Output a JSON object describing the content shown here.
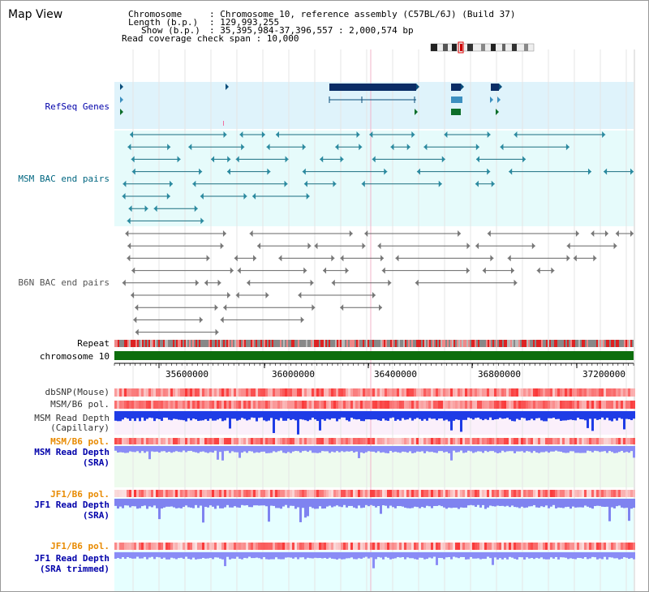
{
  "title": "Map View",
  "header": {
    "chromosome_key": "Chromosome",
    "chromosome_val": ": Chromosome 10, reference assembly (C57BL/6J) (Build 37)",
    "length_key": "Length (b.p.)",
    "length_val": ": 129,993,255",
    "show_key": "Show (b.p.)",
    "show_val": ": 35,395,984-37,396,557 : 2,000,574 bp",
    "coverage": "Read coverage check span : 10,000"
  },
  "tracks": {
    "refseq": "RefSeq Genes",
    "msm_bac": "MSM BAC end pairs",
    "b6n_bac": "B6N BAC end pairs",
    "repeat": "Repeat",
    "chromosome": "chromosome 10",
    "dbsnp": "dbSNP(Mouse)",
    "msm_b6_pol": "MSM/B6 pol.",
    "msm_depth_cap_1": "MSM Read Depth",
    "msm_depth_cap_2": "(Capillary)",
    "msm_b6_pol_sra": "MSM/B6 pol.",
    "msm_depth_sra_1": "MSM Read Depth",
    "msm_depth_sra_2": "(SRA)",
    "jf1_b6_pol": "JF1/B6 pol.",
    "jf1_depth_sra_1": "JF1 Read Depth",
    "jf1_depth_sra_2": "(SRA)",
    "jf1_b6_pol_trim": "JF1/B6 pol.",
    "jf1_depth_trim_1": "JF1 Read Depth",
    "jf1_depth_trim_2": "(SRA trimmed)"
  },
  "axis_ticks": [
    "35600000",
    "36000000",
    "36400000",
    "36800000",
    "37200000"
  ],
  "colors": {
    "refseq_bg": "#dff3fb",
    "msm_bg": "#e6fbfb",
    "b6n_bg": "#ffffff",
    "depth_bg": "#eefbee",
    "sra_bg": "#e6ffff",
    "chrom_green": "#0d6e0d",
    "label_blue": "#0000aa",
    "label_teal": "#006680",
    "label_orange": "#e88a00"
  }
}
